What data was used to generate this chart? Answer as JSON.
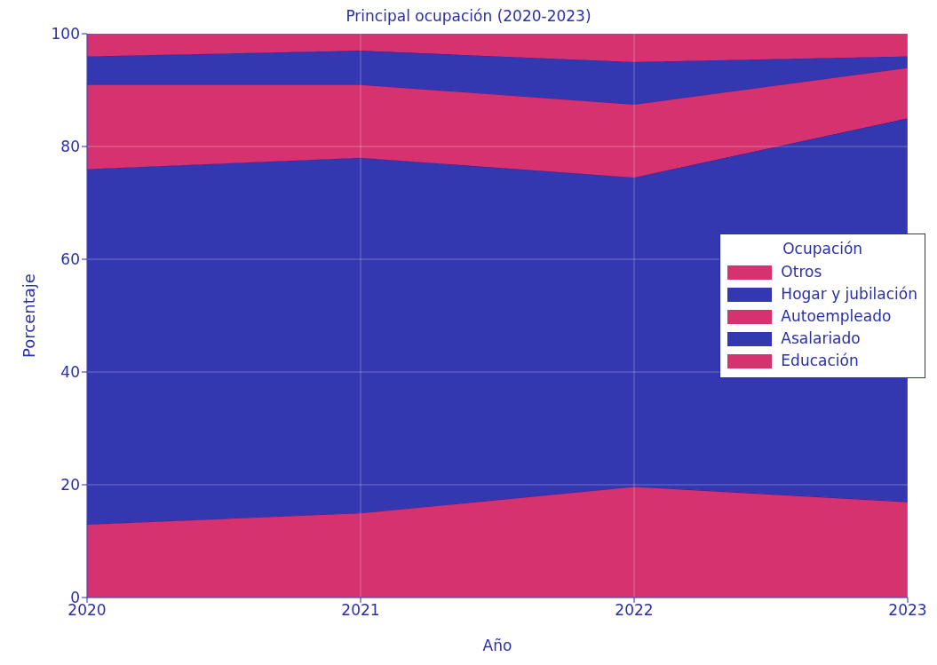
{
  "chart_data": {
    "type": "area",
    "stacked": true,
    "title": "Principal ocupación (2020-2023)",
    "xlabel": "Año",
    "ylabel": "Porcentaje",
    "legend_title": "Ocupación",
    "legend": "right",
    "grid": true,
    "x": [
      2020,
      2021,
      2022,
      2023
    ],
    "xlim": [
      2020,
      2023
    ],
    "xticks": [
      2020,
      2021,
      2022,
      2023
    ],
    "ylim": [
      0,
      100
    ],
    "yticks": [
      0,
      20,
      40,
      60,
      80,
      100
    ],
    "series": [
      {
        "name": "Educación",
        "color": "#d6326f",
        "values": [
          13,
          15,
          19.7,
          17
        ]
      },
      {
        "name": "Asalariado",
        "color": "#3338b0",
        "values": [
          63,
          63,
          54.8,
          68
        ]
      },
      {
        "name": "Autoempleado",
        "color": "#d6326f",
        "values": [
          15,
          13,
          13,
          9
        ]
      },
      {
        "name": "Hogar y jubilación",
        "color": "#3338b0",
        "values": [
          5,
          6,
          7.5,
          2
        ]
      },
      {
        "name": "Otros",
        "color": "#d6326f",
        "values": [
          4,
          3,
          5,
          4
        ]
      }
    ]
  }
}
